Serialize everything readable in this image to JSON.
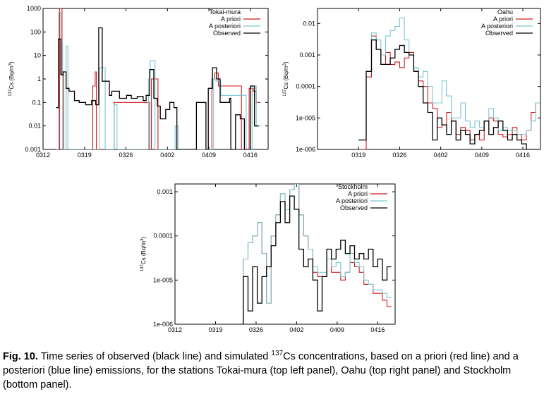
{
  "caption": {
    "label": "Fig. 10.",
    "pre": " Time series of observed (black line) and simulated ",
    "sup": "137",
    "post": "Cs concentrations, based on a priori (red line) and a posteriori (blue line) emissions, for the stations Tokai-mura (top left panel), Oahu (top right panel) and Stockholm (bottom panel)."
  },
  "colors": {
    "prior": "#d0191b",
    "posterior": "#7cc5d6",
    "observed": "#000000"
  },
  "chart_data": [
    {
      "type": "line",
      "title": "Tokai-mura",
      "ylabel": "137Cs (Bq/m3)",
      "ylabel_sup1": "137",
      "ylabel_mid": "Cs (Bq/m",
      "ylabel_sup2": "3",
      "ylabel_end": ")",
      "yscale": "log",
      "ylim": [
        0.001,
        1000
      ],
      "yticks": [
        "1000",
        "100",
        "10",
        "1",
        "0.1",
        "0.01",
        "0.001"
      ],
      "xlim": [
        0,
        38
      ],
      "xticks": [
        "0312",
        "0319",
        "0326",
        "0402",
        "0409",
        "0416"
      ],
      "xtick_pos": [
        0,
        7,
        14,
        21,
        28,
        35
      ],
      "legend": [
        "A priori",
        "A posteriori",
        "Observed"
      ],
      "series": [
        {
          "name": "A priori",
          "x": [
            2.5,
            2.8,
            3.2,
            3.5,
            8.1,
            8.4,
            8.8,
            9,
            11.4,
            12,
            18,
            18.3,
            19,
            19.4,
            28,
            28.5,
            29,
            29.6,
            33.5,
            34.8,
            35.5,
            36
          ],
          "values": [
            0.001,
            1000,
            1.5,
            0.001,
            0.001,
            0.5,
            2,
            0.001,
            0.001,
            0.1,
            0.001,
            1,
            1,
            0.001,
            0.001,
            1,
            1.8,
            0.5,
            0.001,
            0.4,
            0.3,
            0.1
          ]
        },
        {
          "name": "A posteriori",
          "x": [
            2.2,
            2.6,
            3,
            3.3,
            3.9,
            4.2,
            9,
            9.5,
            10.5,
            12,
            12.5,
            16.5,
            17.8,
            18.1,
            18.9,
            19.3,
            22.3,
            22.8,
            28,
            28.8,
            29.2,
            30,
            34.3,
            35.3,
            36
          ],
          "values": [
            0.001,
            700,
            40,
            0.001,
            25,
            0.001,
            0.001,
            3,
            0.001,
            0.08,
            0.001,
            0.001,
            1,
            6,
            0.001,
            0.001,
            0.01,
            0.001,
            0.001,
            1,
            0.8,
            0.2,
            0.001,
            0.5,
            0.01
          ]
        },
        {
          "name": "Observed",
          "x": [
            2.2,
            2.6,
            3,
            3.4,
            3.9,
            4.4,
            5.3,
            6.1,
            7.2,
            8.2,
            8.9,
            9.4,
            10,
            11.2,
            11.6,
            12.9,
            14.1,
            14.9,
            15.9,
            16.9,
            17.4,
            18,
            18.7,
            19.3,
            19.8,
            20.7,
            21.4,
            22.1,
            22.6,
            25.9,
            26.6,
            27.5,
            27.9,
            28.6,
            29.3,
            29.9,
            31.5,
            31.7,
            32.5,
            33.3,
            34,
            35,
            35.7
          ],
          "values": [
            0.06,
            50,
            1.5,
            2,
            0.4,
            0.3,
            0.12,
            0.1,
            0.08,
            0.12,
            0.08,
            150,
            0.8,
            0.2,
            0.3,
            0.15,
            0.2,
            0.15,
            0.18,
            0.12,
            0.2,
            2.5,
            0.15,
            0.07,
            0.02,
            0.05,
            0.1,
            0.06,
            0.001,
            0.1,
            0.1,
            0.001,
            0.4,
            3,
            1,
            0.1,
            0.15,
            0.001,
            0.03,
            0.02,
            0.001,
            0.5,
            0.01
          ]
        }
      ]
    },
    {
      "type": "line",
      "title": "Oahu",
      "ylabel": "137Cs (Bq/m3)",
      "ylabel_sup1": "137",
      "ylabel_mid": "Cs (Bq/m",
      "ylabel_sup2": "3",
      "ylabel_end": ")",
      "yscale": "log",
      "ylim": [
        1e-06,
        0.03
      ],
      "yticks": [
        "0.01",
        "0.001",
        "0.0001",
        "1e-005",
        "1e-006"
      ],
      "ytick_vals": [
        0.01,
        0.001,
        0.0001,
        1e-05,
        1e-06
      ],
      "xlim": [
        0,
        38
      ],
      "xticks": [
        "0319",
        "0326",
        "0402",
        "0409",
        "0416"
      ],
      "xtick_pos": [
        7,
        14,
        21,
        28,
        35
      ],
      "legend": [
        "A priori",
        "A posteriori",
        "Observed"
      ],
      "series": [
        {
          "name": "A priori",
          "x": [
            7,
            8.3,
            9.2,
            10,
            10.8,
            11.6,
            12.4,
            13.2,
            14,
            14.8,
            15.6,
            16.4,
            17.2,
            18,
            18.8,
            19.6,
            20.4,
            21.2,
            22,
            22.8,
            23.6,
            24.4,
            25.2,
            26,
            26.8,
            27.6,
            28.4,
            29.2,
            30,
            30.8,
            31.6,
            32.4,
            33.2,
            34,
            34.8,
            35.6,
            36.4,
            37.2
          ],
          "values": [
            1e-06,
            0.0002,
            0.004,
            0.0015,
            0.0005,
            0.0012,
            0.0005,
            0.0006,
            0.0004,
            0.0008,
            0.0012,
            0.0003,
            0.00015,
            0.0001,
            3e-05,
            2e-05,
            5e-06,
            6e-06,
            1.5e-05,
            8e-06,
            3e-06,
            5e-06,
            4e-06,
            2e-06,
            3e-06,
            2e-06,
            8e-06,
            1e-05,
            8e-06,
            3e-06,
            2.5e-06,
            3e-06,
            5e-06,
            3e-06,
            2e-06,
            4e-06,
            1.5e-05,
            3e-05
          ]
        },
        {
          "name": "A posteriori",
          "x": [
            7,
            8.3,
            9.2,
            10,
            10.8,
            11.6,
            12.4,
            13.2,
            14,
            14.8,
            15.6,
            16.4,
            17.2,
            18,
            18.8,
            19.6,
            20.4,
            21.2,
            22,
            22.8,
            23.6,
            24.4,
            25.2,
            26,
            26.8,
            27.6,
            28.4,
            29.2,
            30,
            30.8,
            31.6,
            32.4,
            33.2,
            34,
            34.8,
            35.6,
            36.4,
            37.2
          ],
          "values": [
            2e-06,
            0.0003,
            0.005,
            0.003,
            0.001,
            0.004,
            0.006,
            0.008,
            0.015,
            0.003,
            0.001,
            0.0004,
            0.0002,
            0.0003,
            0.0001,
            3e-05,
            3e-05,
            0.00015,
            5e-05,
            1e-05,
            1e-05,
            3e-05,
            8e-06,
            5e-06,
            8e-06,
            5e-06,
            8e-06,
            2e-05,
            1e-05,
            4e-06,
            5e-06,
            4e-06,
            4e-06,
            3e-06,
            3e-06,
            4e-06,
            8e-06,
            3e-05
          ]
        },
        {
          "name": "Observed",
          "x": [
            7,
            8.3,
            9.2,
            10,
            10.8,
            11.6,
            12.4,
            13.2,
            14,
            14.8,
            15.6,
            16.4,
            17.2,
            18,
            18.8,
            19.6,
            20.4,
            21.2,
            22,
            22.8,
            23.6,
            24.4,
            25.2,
            26,
            26.8,
            27.6,
            28.4,
            29.2,
            30,
            30.8,
            31.6,
            32.4,
            33.2,
            34,
            34.8,
            35.6,
            36.4,
            37.2
          ],
          "values": [
            2e-06,
            0.0003,
            0.003,
            0.0015,
            0.0005,
            0.0005,
            0.0008,
            0.0015,
            0.002,
            0.0012,
            0.001,
            0.0003,
            0.0001,
            3e-05,
            1.5e-05,
            2e-06,
            1e-05,
            6e-06,
            3e-06,
            8e-06,
            2e-06,
            4e-06,
            3e-06,
            1.5e-06,
            3e-06,
            4e-06,
            8e-06,
            3e-06,
            5e-06,
            8e-06,
            4e-06,
            2e-06,
            3e-06,
            2e-06,
            1.5e-06,
            1e-06,
            1e-06,
            1e-06
          ]
        }
      ]
    },
    {
      "type": "line",
      "title": "Stockholm",
      "ylabel": "137Cs (Bq/m3)",
      "ylabel_sup1": "137",
      "ylabel_mid": "Cs (Bq/m",
      "ylabel_sup2": "3",
      "ylabel_end": ")",
      "yscale": "log",
      "ylim": [
        1e-06,
        0.0015
      ],
      "yticks": [
        "0.001",
        "0.0001",
        "1e-005",
        "1e-006"
      ],
      "ytick_vals": [
        0.001,
        0.0001,
        1e-05,
        1e-06
      ],
      "xlim": [
        0,
        38
      ],
      "xticks": [
        "0312",
        "0319",
        "0326",
        "0402",
        "0409",
        "0416"
      ],
      "xtick_pos": [
        0,
        7,
        14,
        21,
        28,
        35
      ],
      "legend": [
        "A priori",
        "A posteriori",
        "Observed"
      ],
      "series": [
        {
          "name": "A priori",
          "x": [
            11,
            11.8,
            12.6,
            13.4,
            14.2,
            15,
            15.8,
            16.6,
            17.4,
            18.2,
            19,
            19.8,
            20.6,
            21.4,
            22.2,
            23,
            23.8,
            24.6,
            25.4,
            26.2,
            27,
            27.8,
            28.6,
            29.4,
            30.2,
            31,
            31.8,
            32.6,
            33.4,
            34.2,
            35,
            35.8,
            36.6
          ],
          "values": [
            1e-06,
            3e-05,
            7e-05,
            0.0001,
            0.0002,
            4e-05,
            3e-06,
            0.0001,
            0.0003,
            0.0009,
            0.0004,
            0.0011,
            0.0015,
            0.0003,
            0.0001,
            5e-05,
            1.5e-05,
            1.2e-05,
            1.2e-05,
            3e-05,
            1.5e-05,
            1.5e-05,
            1e-05,
            1.5e-05,
            2.5e-05,
            2e-05,
            1.5e-05,
            8e-06,
            8e-06,
            5e-06,
            5e-06,
            3.5e-06,
            2.5e-06
          ]
        },
        {
          "name": "A posteriori",
          "x": [
            11,
            11.8,
            12.6,
            13.4,
            14.2,
            15,
            15.8,
            16.6,
            17.4,
            18.2,
            19,
            19.8,
            20.6,
            21.4,
            22.2,
            23,
            23.8,
            24.6,
            25.4,
            26.2,
            27,
            27.8,
            28.6,
            29.4,
            30.2,
            31,
            31.8,
            32.6,
            33.4,
            34.2,
            35,
            35.8,
            36.6
          ],
          "values": [
            1e-06,
            3e-05,
            7e-05,
            0.0001,
            0.0002,
            4e-05,
            3e-06,
            0.0001,
            0.0003,
            0.0009,
            0.0004,
            0.0011,
            0.0015,
            0.0003,
            0.0001,
            5e-05,
            2e-05,
            1.5e-05,
            1.5e-05,
            3e-05,
            2e-05,
            2.5e-05,
            1.2e-05,
            1.5e-05,
            4e-05,
            2.5e-05,
            2e-05,
            1e-05,
            8e-06,
            6e-06,
            6e-06,
            5e-06,
            4e-06
          ]
        },
        {
          "name": "Observed",
          "x": [
            11,
            11.8,
            12.6,
            13.4,
            14.2,
            15,
            15.8,
            16.6,
            17.4,
            18.2,
            19,
            19.8,
            20.6,
            21.4,
            22.2,
            23,
            23.8,
            24.6,
            25.4,
            26.2,
            27,
            27.8,
            28.6,
            29.4,
            30.2,
            31,
            31.8,
            32.6,
            33.4,
            34.2,
            35,
            35.8,
            36.6
          ],
          "values": [
            1e-06,
            1.2e-05,
            2e-06,
            2e-05,
            3e-06,
            1.2e-05,
            2e-05,
            6e-05,
            0.0002,
            0.0006,
            0.0002,
            0.0008,
            0.0004,
            5e-05,
            2e-05,
            3e-05,
            1e-05,
            2e-06,
            1.2e-05,
            5e-05,
            3e-05,
            5e-05,
            8e-05,
            4e-05,
            6e-05,
            3e-05,
            4e-05,
            3e-05,
            5e-05,
            2e-05,
            3e-05,
            1e-05,
            2e-05
          ]
        }
      ]
    }
  ]
}
